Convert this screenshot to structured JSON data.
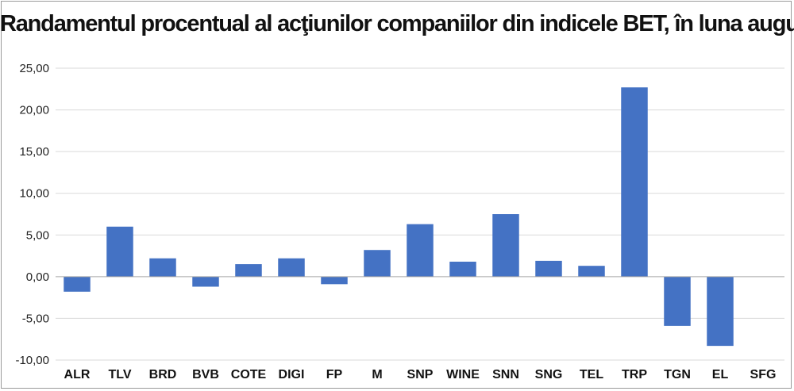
{
  "chart_data": {
    "type": "bar",
    "title": "Randamentul procentual al acţiunilor companiilor din indicele BET, în luna august",
    "xlabel": "",
    "ylabel": "",
    "ylim": [
      -10,
      25
    ],
    "yticks": [
      25,
      20,
      15,
      10,
      5,
      0,
      -5,
      -10
    ],
    "ytick_labels": [
      "25,00",
      "20,00",
      "15,00",
      "10,00",
      "5,00",
      "0,00",
      "-5,00",
      "-10,00"
    ],
    "grid": true,
    "bar_color": "#4472c4",
    "categories": [
      "ALR",
      "TLV",
      "BRD",
      "BVB",
      "COTE",
      "DIGI",
      "FP",
      "M",
      "SNP",
      "WINE",
      "SNN",
      "SNG",
      "TEL",
      "TRP",
      "TGN",
      "EL",
      "SFG"
    ],
    "values": [
      -1.8,
      6.0,
      2.2,
      -1.2,
      1.5,
      2.2,
      -0.9,
      3.2,
      6.3,
      1.8,
      7.5,
      1.9,
      1.3,
      22.7,
      -5.9,
      -8.3,
      0.0
    ]
  }
}
